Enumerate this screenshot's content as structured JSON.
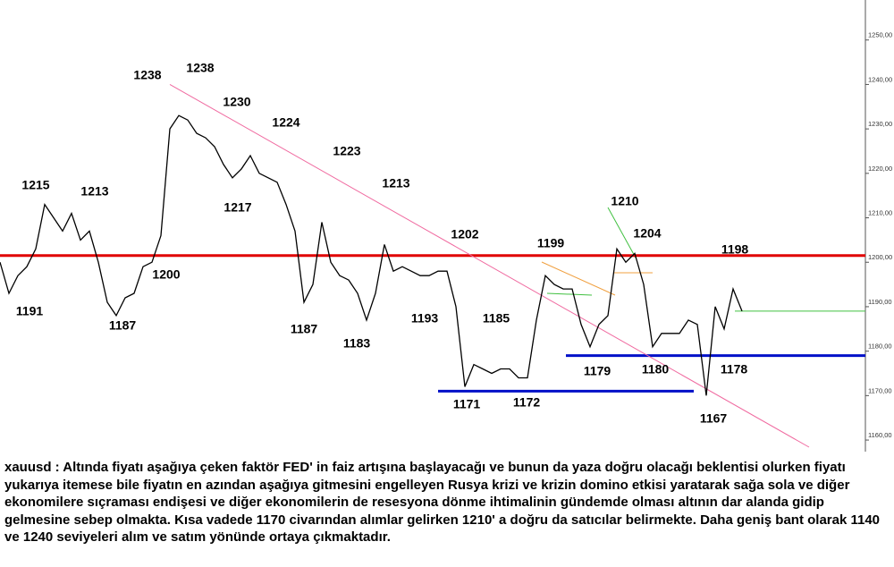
{
  "chart_data": {
    "type": "line",
    "series": [
      {
        "name": "xauusd",
        "color": "#000000",
        "values": [
          1200,
          1193,
          1197,
          1199,
          1203,
          1213,
          1210,
          1207,
          1211,
          1205,
          1207,
          1200,
          1191,
          1188,
          1192,
          1193,
          1199,
          1200,
          1206,
          1230,
          1233,
          1232,
          1229,
          1228,
          1226,
          1222,
          1219,
          1221,
          1224,
          1220,
          1219,
          1218,
          1213,
          1207,
          1191,
          1195,
          1209,
          1200,
          1197,
          1196,
          1193,
          1187,
          1193,
          1204,
          1198,
          1199,
          1198,
          1197,
          1197,
          1198,
          1198,
          1190,
          1172,
          1177,
          1176,
          1175,
          1176,
          1176,
          1174,
          1174,
          1187,
          1197,
          1195,
          1194,
          1194,
          1186,
          1181,
          1186,
          1188,
          1203,
          1200,
          1202,
          1195,
          1181,
          1184,
          1184,
          1184,
          1187,
          1186,
          1170,
          1190,
          1185,
          1194,
          1189
        ]
      }
    ],
    "ylim": [
      1158.4,
      1259
    ],
    "yticks": [
      {
        "value": 1160,
        "label": "1160,00"
      },
      {
        "value": 1170,
        "label": "1170,00"
      },
      {
        "value": 1180,
        "label": "1180,00"
      },
      {
        "value": 1190,
        "label": "1190,00"
      },
      {
        "value": 1200,
        "label": "1200,00"
      },
      {
        "value": 1210,
        "label": "1210,00"
      },
      {
        "value": 1220,
        "label": "1220,00"
      },
      {
        "value": 1230,
        "label": "1230,00"
      },
      {
        "value": 1240,
        "label": "1240,00"
      },
      {
        "value": 1250,
        "label": "1250,00"
      }
    ],
    "levels": [
      {
        "value": 1201.5,
        "color": "#e00000"
      },
      {
        "value": 1179,
        "color": "#0010c8"
      },
      {
        "value": 1171,
        "color": "#0010c8"
      },
      {
        "value": 1189,
        "color": "#40c040"
      }
    ],
    "trendline": {
      "color": "#f06aa0",
      "values": [
        1240,
        1158.4
      ]
    },
    "annotations": [
      1238,
      1238,
      1230,
      1224,
      1223,
      1213,
      1202,
      1199,
      1210,
      1204,
      1198,
      1215,
      1213,
      1217,
      1200,
      1191,
      1187,
      1187,
      1183,
      1193,
      1185,
      1171,
      1172,
      1179,
      1180,
      1178,
      1167
    ]
  },
  "description": "xauusd : Altında fiyatı aşağıya çeken faktör FED' in faiz artışına başlayacağı ve bunun da yaza doğru olacağı beklentisi olurken fiyatı yukarıya itemese bile fiyatın en azından aşağıya gitmesini engelleyen Rusya krizi ve krizin domino etkisi yaratarak sağa sola ve diğer ekonomilere sıçraması endişesi ve diğer ekonomilerin de resesyona dönme ihtimalinin gündemde olması altının dar alanda gidip gelmesine sebep olmakta. Kısa vadede 1170 civarından alımlar gelirken 1210' a doğru da satıcılar belirmekte. Daha geniş bant olarak 1140 ve 1240 seviyeleri alım ve satım yönünde ortaya çıkmaktadır."
}
